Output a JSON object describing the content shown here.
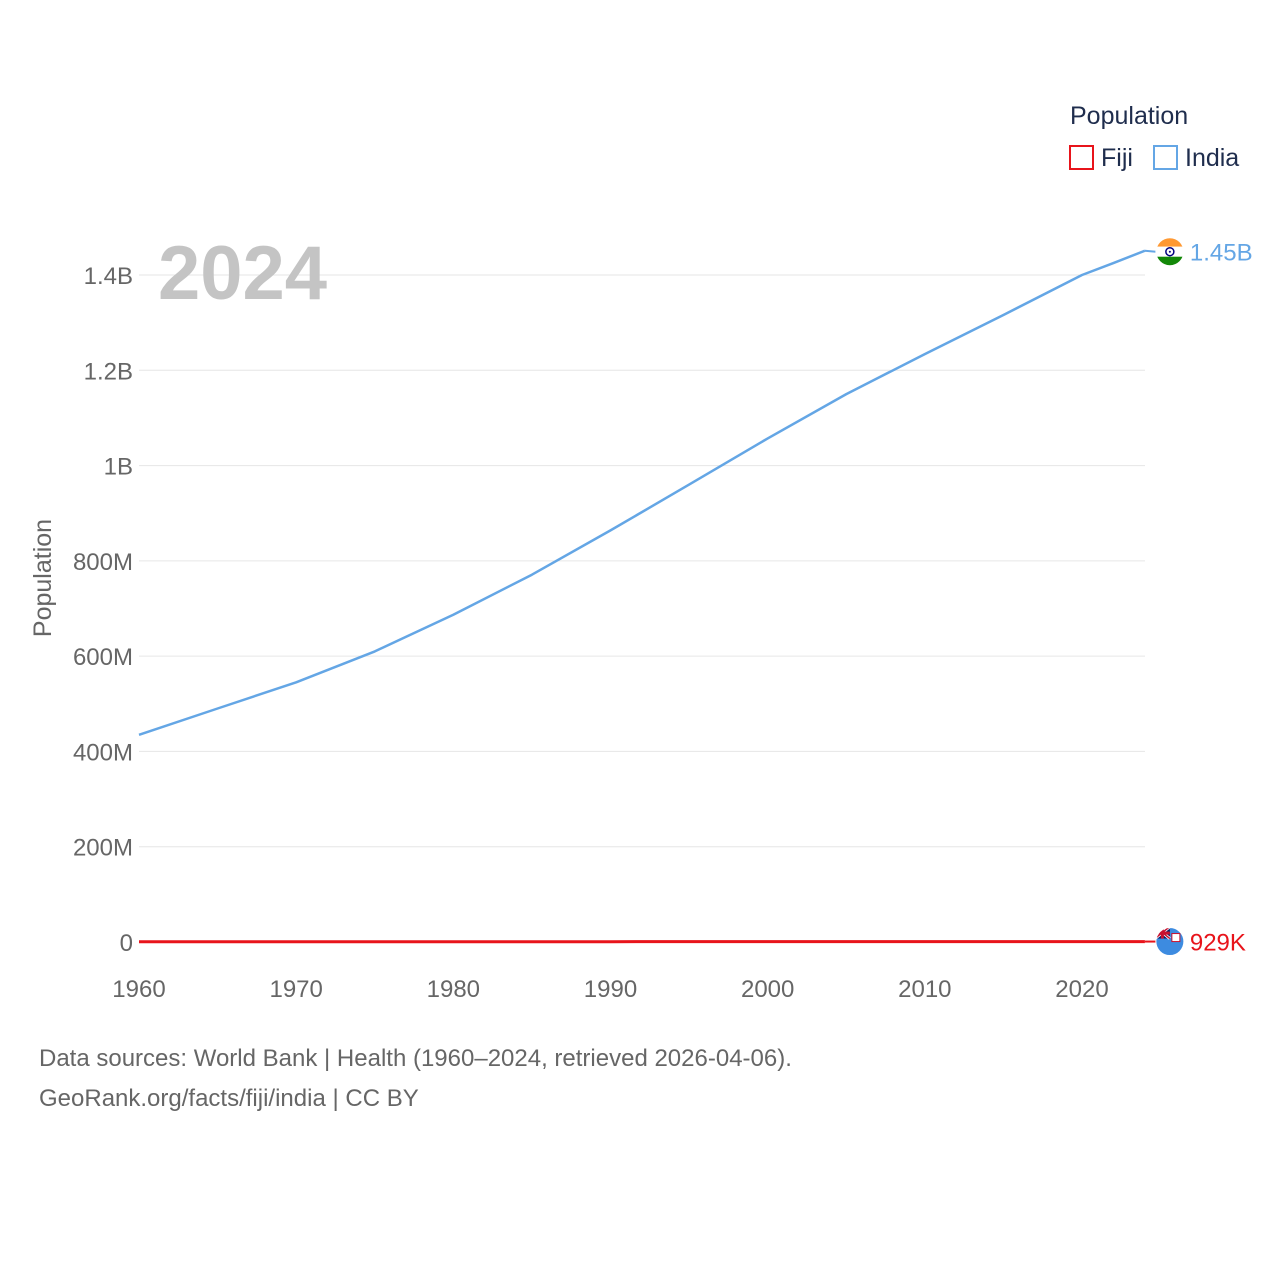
{
  "chart_data": {
    "type": "line",
    "year_label": "2024",
    "ylabel": "Population",
    "xlabel": "",
    "ylim": [
      0,
      1500000000
    ],
    "xlim": [
      1960,
      2024
    ],
    "y_ticks": [
      {
        "value": 0,
        "label": "0"
      },
      {
        "value": 200000000,
        "label": "200M"
      },
      {
        "value": 400000000,
        "label": "400M"
      },
      {
        "value": 600000000,
        "label": "600M"
      },
      {
        "value": 800000000,
        "label": "800M"
      },
      {
        "value": 1000000000,
        "label": "1B"
      },
      {
        "value": 1200000000,
        "label": "1.2B"
      },
      {
        "value": 1400000000,
        "label": "1.4B"
      }
    ],
    "x_ticks": [
      {
        "value": 1960,
        "label": "1960"
      },
      {
        "value": 1970,
        "label": "1970"
      },
      {
        "value": 1980,
        "label": "1980"
      },
      {
        "value": 1990,
        "label": "1990"
      },
      {
        "value": 2000,
        "label": "2000"
      },
      {
        "value": 2010,
        "label": "2010"
      },
      {
        "value": 2020,
        "label": "2020"
      }
    ],
    "legend": {
      "title": "Population",
      "position": "top-right"
    },
    "series": [
      {
        "name": "Fiji",
        "color": "#e8141b",
        "end_label": "929K",
        "flag": "fiji-flag",
        "points": [
          [
            1960,
            393000
          ],
          [
            1970,
            520000
          ],
          [
            1980,
            635000
          ],
          [
            1990,
            729000
          ],
          [
            2000,
            812000
          ],
          [
            2010,
            860000
          ],
          [
            2020,
            896000
          ],
          [
            2024,
            929000
          ]
        ]
      },
      {
        "name": "India",
        "color": "#64a6e5",
        "end_label": "1.45B",
        "flag": "india-flag",
        "points": [
          [
            1960,
            435000000
          ],
          [
            1965,
            490000000
          ],
          [
            1970,
            545000000
          ],
          [
            1975,
            610000000
          ],
          [
            1980,
            687000000
          ],
          [
            1985,
            771000000
          ],
          [
            1990,
            864000000
          ],
          [
            1995,
            960000000
          ],
          [
            2000,
            1057000000
          ],
          [
            2005,
            1150000000
          ],
          [
            2010,
            1234000000
          ],
          [
            2015,
            1316000000
          ],
          [
            2020,
            1400000000
          ],
          [
            2022,
            1425000000
          ],
          [
            2024,
            1451000000
          ]
        ]
      }
    ]
  },
  "footer": {
    "line1": "Data sources: World Bank | Health (1960–2024, retrieved 2026-04-06).",
    "line2": "GeoRank.org/facts/fiji/india | CC BY"
  }
}
